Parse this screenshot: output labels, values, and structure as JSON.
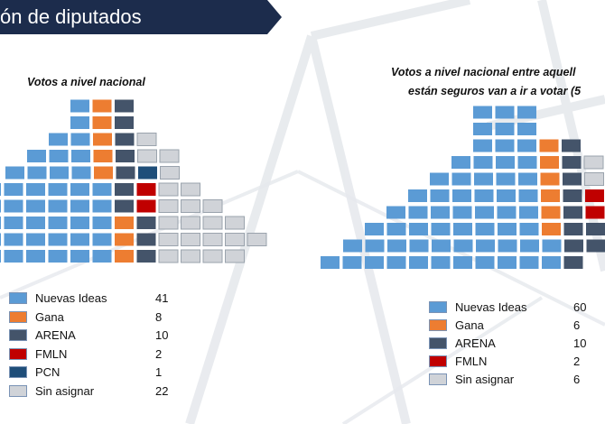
{
  "header": {
    "title": "ón de diputados",
    "background": "#1c2c4c"
  },
  "colors": {
    "Nuevas Ideas": "#5b9bd5",
    "Gana": "#ed7d31",
    "ARENA": "#44546a",
    "FMLN": "#c00000",
    "PCN": "#1f4e79",
    "Sin asignar": "#d0d3d8"
  },
  "chart_data": [
    {
      "type": "parliament",
      "title": "Votos a nivel nacional",
      "series": [
        {
          "name": "Nuevas Ideas",
          "values": [
            41
          ]
        },
        {
          "name": "Gana",
          "values": [
            8
          ]
        },
        {
          "name": "ARENA",
          "values": [
            10
          ]
        },
        {
          "name": "FMLN",
          "values": [
            2
          ]
        },
        {
          "name": "PCN",
          "values": [
            1
          ]
        },
        {
          "name": "Sin asignar",
          "values": [
            22
          ]
        }
      ]
    },
    {
      "type": "parliament",
      "title_lines": [
        "Votos a nivel nacional entre aquell",
        "están seguros van a ir a votar (5"
      ],
      "series": [
        {
          "name": "Nuevas Ideas",
          "values": [
            60
          ]
        },
        {
          "name": "Gana",
          "values": [
            6
          ]
        },
        {
          "name": "ARENA",
          "values": [
            10
          ]
        },
        {
          "name": "FMLN",
          "values": [
            2
          ]
        },
        {
          "name": "Sin asignar",
          "values": [
            6
          ]
        }
      ]
    }
  ],
  "legend_left": [
    {
      "name": "Nuevas Ideas",
      "value": "41"
    },
    {
      "name": "Gana",
      "value": "8"
    },
    {
      "name": "ARENA",
      "value": "10"
    },
    {
      "name": "FMLN",
      "value": "2"
    },
    {
      "name": "PCN",
      "value": "1"
    },
    {
      "name": "Sin asignar",
      "value": "22"
    }
  ],
  "legend_right": [
    {
      "name": "Nuevas Ideas",
      "value": "60"
    },
    {
      "name": "Gana",
      "value": "6"
    },
    {
      "name": "ARENA",
      "value": "10"
    },
    {
      "name": "FMLN",
      "value": "2"
    },
    {
      "name": "Sin asignar",
      "value": "6"
    }
  ]
}
